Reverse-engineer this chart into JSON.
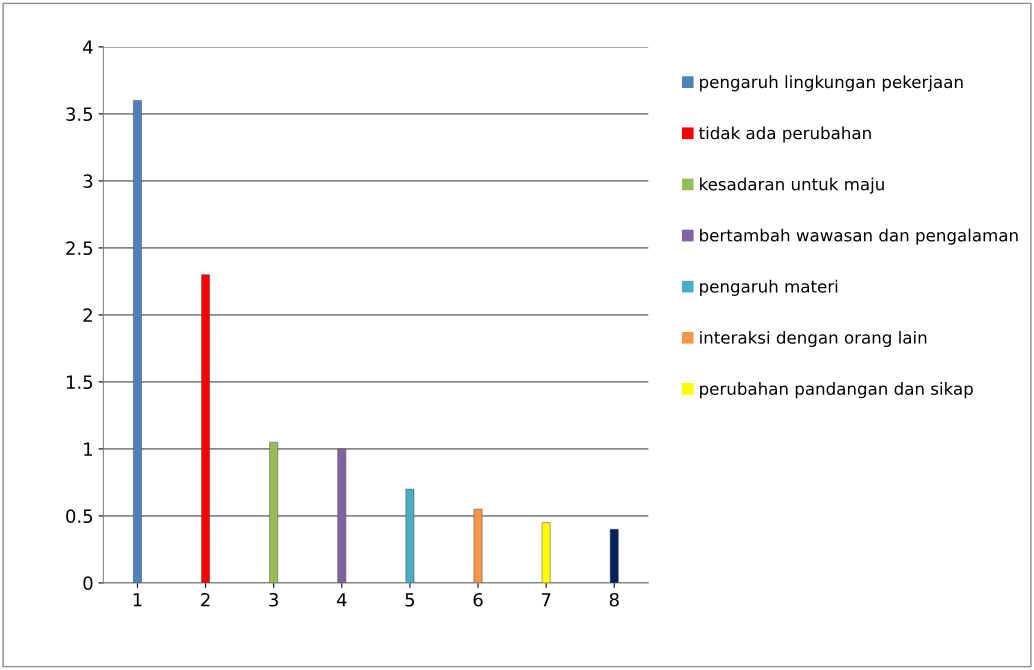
{
  "chart_data": {
    "type": "bar",
    "categories": [
      "1",
      "2",
      "3",
      "4",
      "5",
      "6",
      "7",
      "8"
    ],
    "series": [
      {
        "name": "pengaruh lingkungan pekerjaan",
        "color": "#4f81bd",
        "values": [
          3.6,
          null,
          null,
          null,
          null,
          null,
          null,
          null
        ]
      },
      {
        "name": "tidak ada perubahan",
        "color": "#ff0000",
        "values": [
          null,
          2.3,
          null,
          null,
          null,
          null,
          null,
          null
        ]
      },
      {
        "name": "kesadaran untuk maju",
        "color": "#9bbb59",
        "values": [
          null,
          null,
          1.05,
          null,
          null,
          null,
          null,
          null
        ]
      },
      {
        "name": "bertambah wawasan dan pengalaman",
        "color": "#8064a2",
        "values": [
          null,
          null,
          null,
          1.0,
          null,
          null,
          null,
          null
        ]
      },
      {
        "name": "pengaruh materi",
        "color": "#4bacc6",
        "values": [
          null,
          null,
          null,
          null,
          0.7,
          null,
          null,
          null
        ]
      },
      {
        "name": "interaksi dengan orang lain",
        "color": "#f79646",
        "values": [
          null,
          null,
          null,
          null,
          null,
          0.55,
          null,
          null
        ]
      },
      {
        "name": "perubahan pandangan dan sikap",
        "color": "#ffff00",
        "values": [
          null,
          null,
          null,
          null,
          null,
          null,
          0.45,
          null
        ]
      },
      {
        "color": "#002060",
        "values": [
          null,
          null,
          null,
          null,
          null,
          null,
          null,
          0.4
        ]
      }
    ],
    "ylim": [
      0,
      4
    ],
    "yticks": [
      0,
      {
        "value": 0.5,
        "label": "0.5"
      },
      1,
      {
        "value": 1.5,
        "label": "1.5"
      },
      2,
      {
        "value": 2.5,
        "label": "2.5"
      },
      3,
      {
        "value": 3.5,
        "label": "3.5"
      },
      4
    ],
    "grid": "y",
    "legend": "right"
  }
}
